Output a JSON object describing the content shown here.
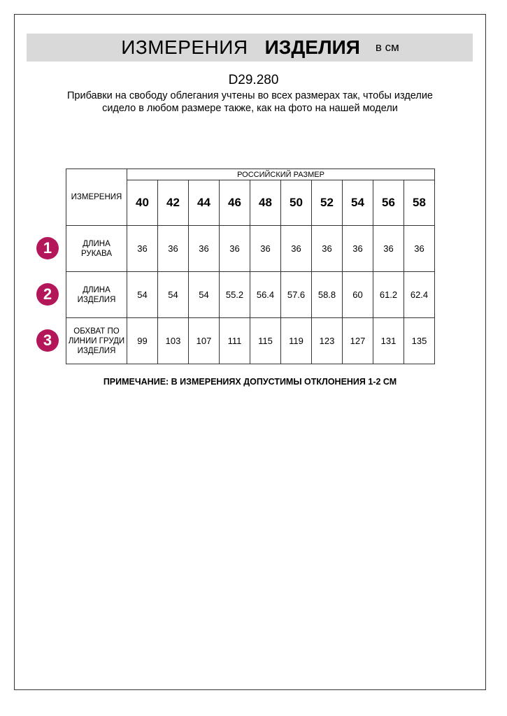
{
  "header": {
    "title_regular": "ИЗМЕРЕНИЯ",
    "title_bold": "ИЗДЕЛИЯ",
    "unit": "в см"
  },
  "article_code": "D29.280",
  "description": "Прибавки на свободу облегания учтены во всех размерах так, чтобы изделие сидело в любом размере также, как на фото на нашей модели",
  "table": {
    "measurement_header": "ИЗМЕРЕНИЯ",
    "size_group_header": "РОССИЙСКИЙ РАЗМЕР",
    "sizes": [
      "40",
      "42",
      "44",
      "46",
      "48",
      "50",
      "52",
      "54",
      "56",
      "58"
    ],
    "rows": [
      {
        "marker": "1",
        "label": "ДЛИНА РУКАВА",
        "values": [
          "36",
          "36",
          "36",
          "36",
          "36",
          "36",
          "36",
          "36",
          "36",
          "36"
        ]
      },
      {
        "marker": "2",
        "label": "ДЛИНА ИЗДЕЛИЯ",
        "values": [
          "54",
          "54",
          "54",
          "55.2",
          "56.4",
          "57.6",
          "58.8",
          "60",
          "61.2",
          "62.4"
        ]
      },
      {
        "marker": "3",
        "label": "ОБХВАТ ПО ЛИНИИ ГРУДИ ИЗДЕЛИЯ",
        "values": [
          "99",
          "103",
          "107",
          "111",
          "115",
          "119",
          "123",
          "127",
          "131",
          "135"
        ]
      }
    ]
  },
  "note": "ПРИМЕЧАНИЕ: В ИЗМЕРЕНИЯХ ДОПУСТИМЫ ОТКЛОНЕНИЯ 1-2 СМ",
  "colors": {
    "marker": "#b3175a",
    "banner": "#d9d9d9"
  }
}
